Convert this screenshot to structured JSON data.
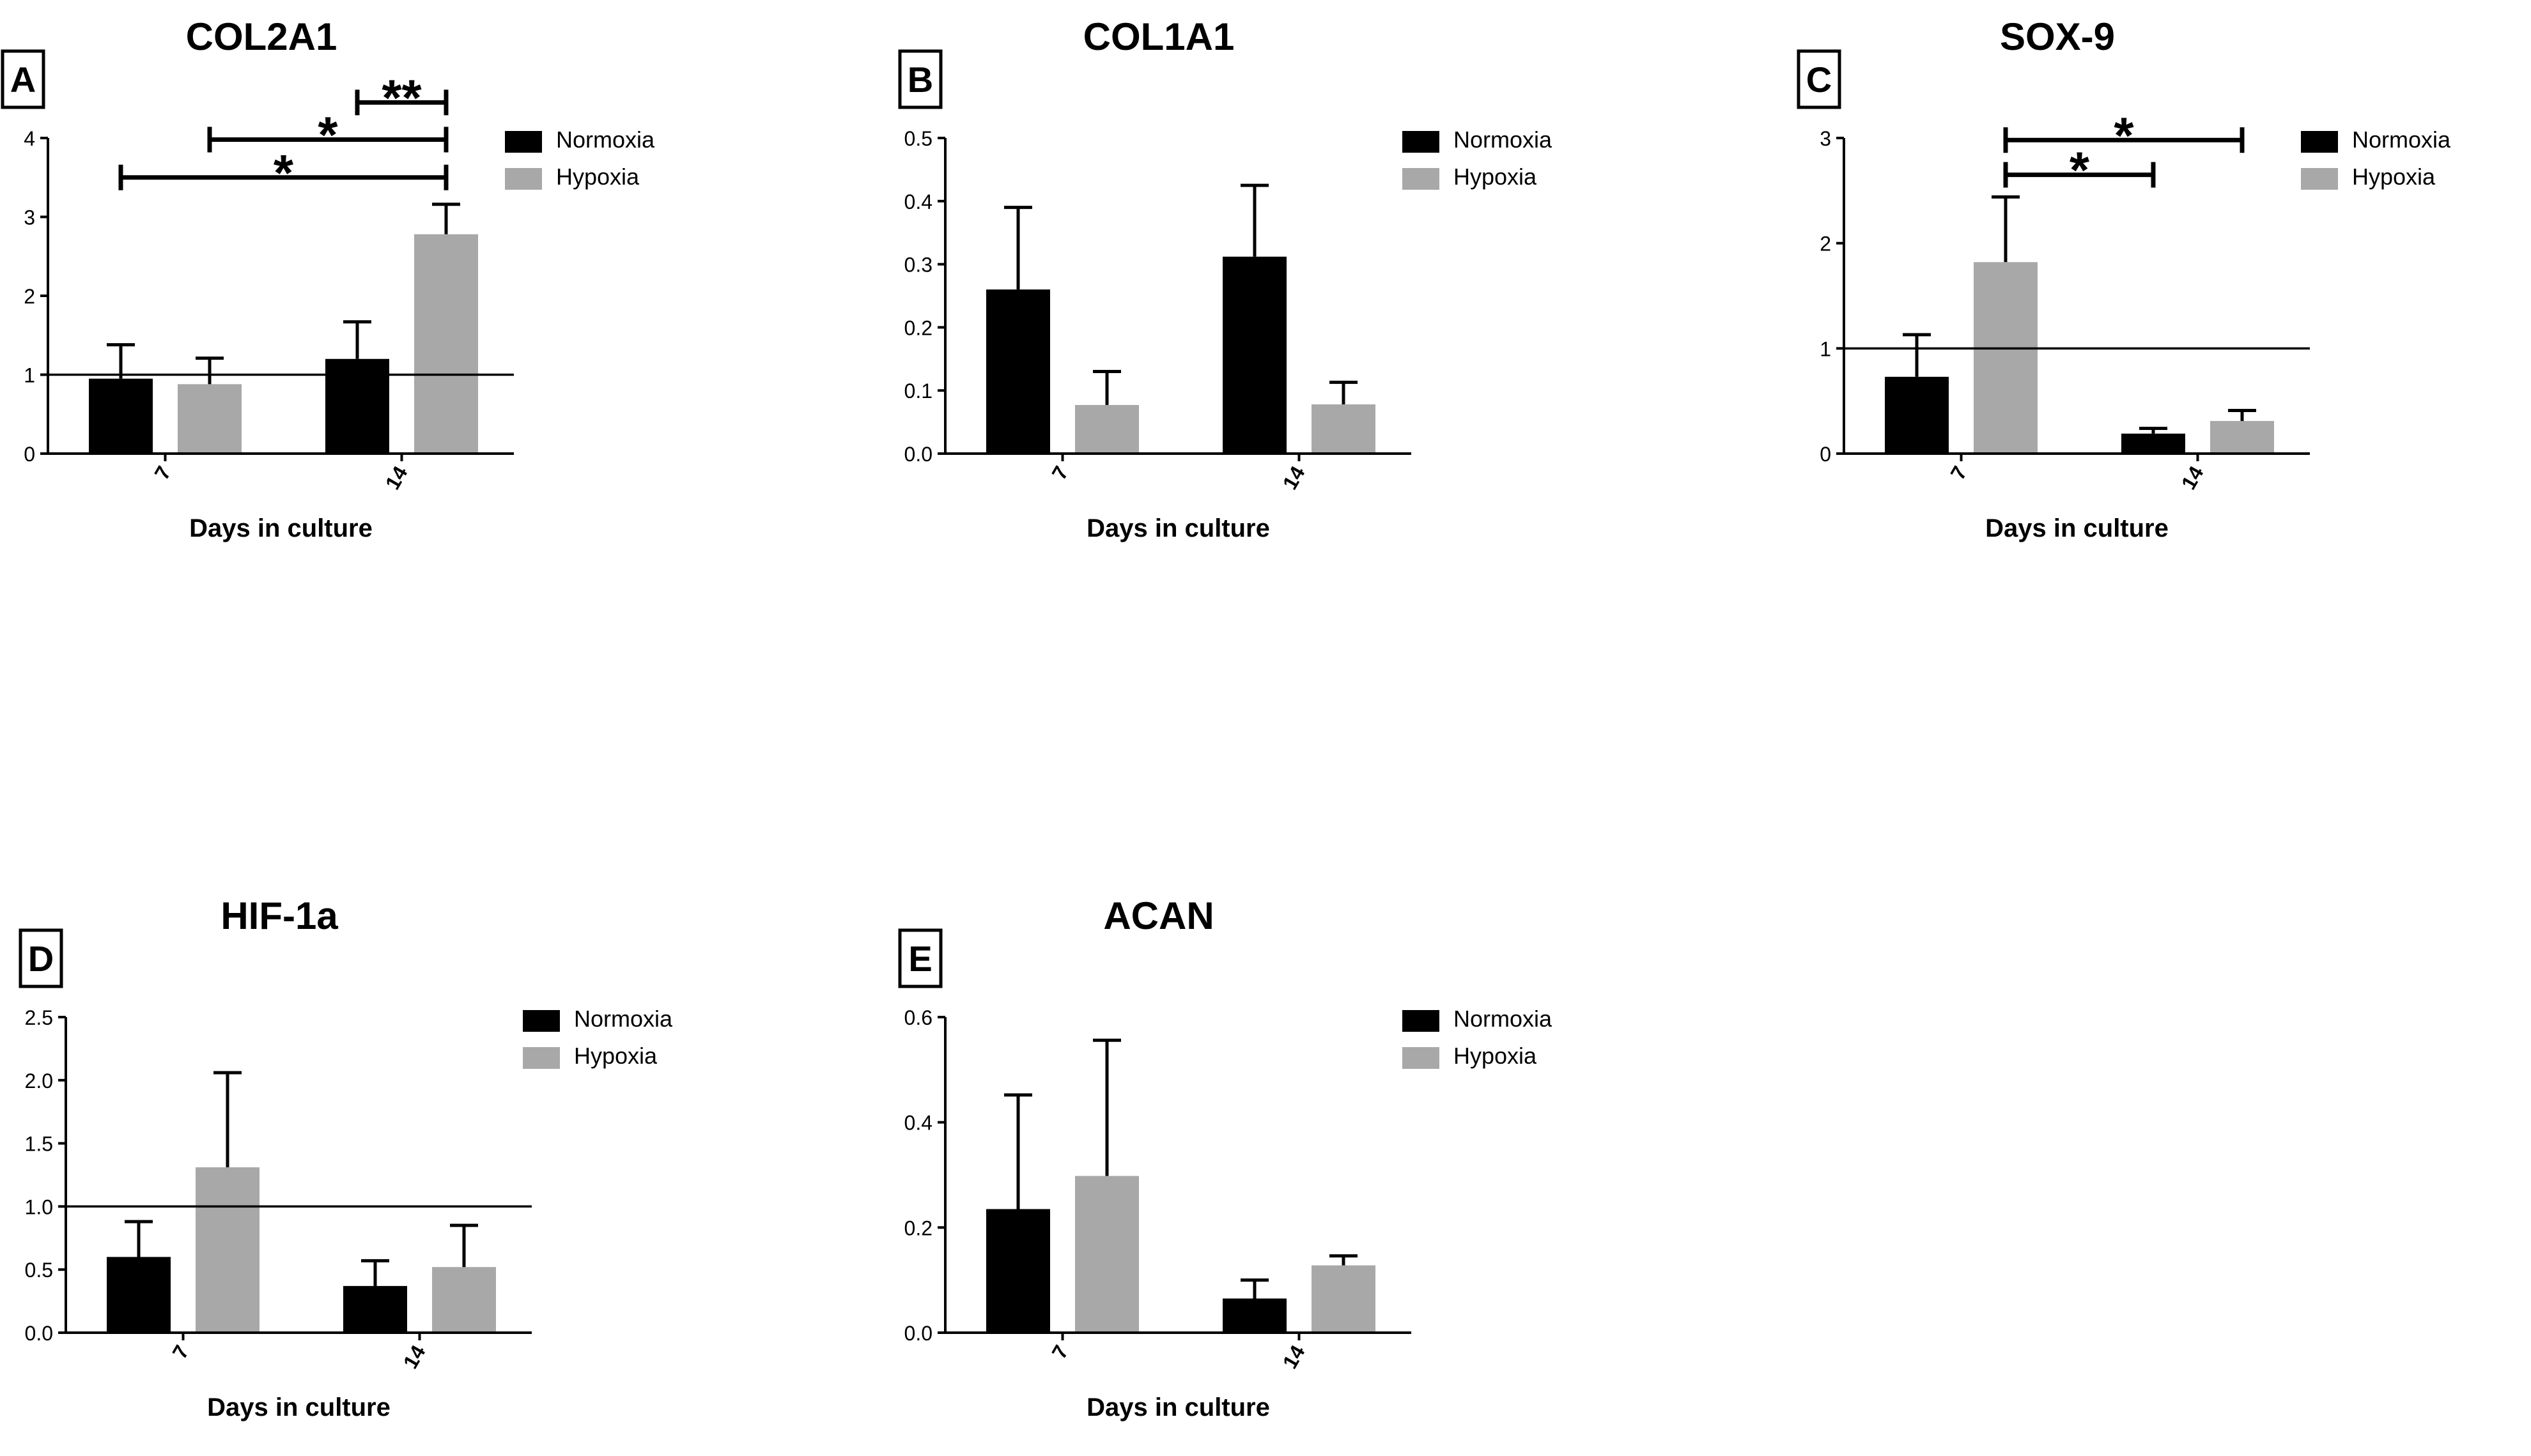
{
  "figure": {
    "colors": {
      "normoxia": "#000000",
      "hypoxia": "#a8a8a8",
      "axis": "#000000"
    }
  },
  "chart_data": [
    {
      "panel": "A",
      "title": "COL2A1",
      "type": "bar",
      "categories": [
        "7",
        "14"
      ],
      "xlabel": "Days in culture",
      "ylabel": "",
      "ylim": [
        0,
        4
      ],
      "yticks": [
        "0",
        "1",
        "2",
        "3",
        "4"
      ],
      "reference_line": 1,
      "legend": [
        "Normoxia",
        "Hypoxia"
      ],
      "series": [
        {
          "name": "Normoxia",
          "values": [
            0.95,
            1.2
          ],
          "errors": [
            0.43,
            0.47
          ]
        },
        {
          "name": "Hypoxia",
          "values": [
            0.88,
            2.78
          ],
          "errors": [
            0.33,
            0.38
          ]
        }
      ],
      "significance": [
        {
          "label": "*",
          "from": "7 Normoxia",
          "to": "14 Hypoxia",
          "y": 3.5
        },
        {
          "label": "*",
          "from": "7 Hypoxia",
          "to": "14 Hypoxia",
          "y": 3.98
        },
        {
          "label": "**",
          "from": "14 Normoxia",
          "to": "14 Hypoxia",
          "y": 4.45
        }
      ]
    },
    {
      "panel": "B",
      "title": "COL1A1",
      "type": "bar",
      "categories": [
        "7",
        "14"
      ],
      "xlabel": "Days in culture",
      "ylabel": "",
      "ylim": [
        0,
        0.5
      ],
      "yticks": [
        "0.0",
        "0.1",
        "0.2",
        "0.3",
        "0.4",
        "0.5"
      ],
      "reference_line": null,
      "legend": [
        "Normoxia",
        "Hypoxia"
      ],
      "series": [
        {
          "name": "Normoxia",
          "values": [
            0.26,
            0.312
          ],
          "errors": [
            0.13,
            0.113
          ]
        },
        {
          "name": "Hypoxia",
          "values": [
            0.077,
            0.078
          ],
          "errors": [
            0.053,
            0.035
          ]
        }
      ],
      "significance": []
    },
    {
      "panel": "C",
      "title": "SOX-9",
      "type": "bar",
      "categories": [
        "7",
        "14"
      ],
      "xlabel": "Days in culture",
      "ylabel": "",
      "ylim": [
        0,
        3
      ],
      "yticks": [
        "0",
        "1",
        "2",
        "3"
      ],
      "reference_line": 1,
      "legend": [
        "Normoxia",
        "Hypoxia"
      ],
      "series": [
        {
          "name": "Normoxia",
          "values": [
            0.73,
            0.19
          ],
          "errors": [
            0.4,
            0.05
          ]
        },
        {
          "name": "Hypoxia",
          "values": [
            1.82,
            0.31
          ],
          "errors": [
            0.62,
            0.1
          ]
        }
      ],
      "significance": [
        {
          "label": "*",
          "from": "7 Hypoxia",
          "to": "14 Normoxia",
          "y": 2.65
        },
        {
          "label": "*",
          "from": "7 Hypoxia",
          "to": "14 Hypoxia",
          "y": 2.98
        }
      ]
    },
    {
      "panel": "D",
      "title": "HIF-1a",
      "type": "bar",
      "categories": [
        "7",
        "14"
      ],
      "xlabel": "Days in culture",
      "ylabel": "",
      "ylim": [
        0,
        2.5
      ],
      "yticks": [
        "0.0",
        "0.5",
        "1.0",
        "1.5",
        "2.0",
        "2.5"
      ],
      "reference_line": 1,
      "legend": [
        "Normoxia",
        "Hypoxia"
      ],
      "series": [
        {
          "name": "Normoxia",
          "values": [
            0.6,
            0.37
          ],
          "errors": [
            0.28,
            0.2
          ]
        },
        {
          "name": "Hypoxia",
          "values": [
            1.31,
            0.52
          ],
          "errors": [
            0.75,
            0.33
          ]
        }
      ],
      "significance": []
    },
    {
      "panel": "E",
      "title": "ACAN",
      "type": "bar",
      "categories": [
        "7",
        "14"
      ],
      "xlabel": "Days in culture",
      "ylabel": "",
      "ylim": [
        0,
        0.6
      ],
      "yticks": [
        "0.0",
        "0.2",
        "0.4",
        "0.6"
      ],
      "reference_line": null,
      "legend": [
        "Normoxia",
        "Hypoxia"
      ],
      "series": [
        {
          "name": "Normoxia",
          "values": [
            0.235,
            0.065
          ],
          "errors": [
            0.217,
            0.035
          ]
        },
        {
          "name": "Hypoxia",
          "values": [
            0.298,
            0.128
          ],
          "errors": [
            0.258,
            0.018
          ]
        }
      ],
      "significance": []
    }
  ]
}
